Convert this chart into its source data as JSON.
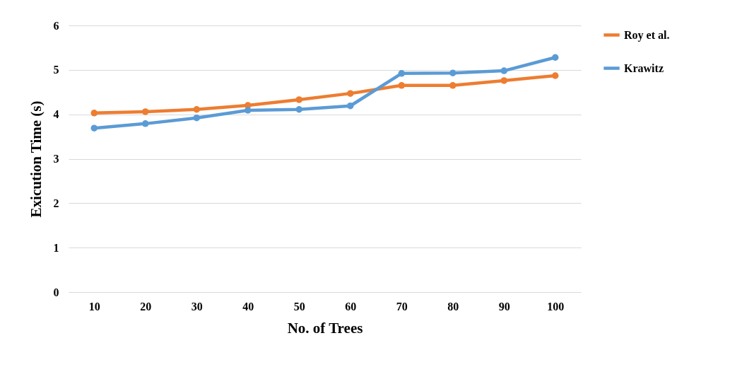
{
  "chart_data": {
    "type": "line",
    "xlabel": "No. of Trees",
    "ylabel": "Exicution Time (s)",
    "categories": [
      "10",
      "20",
      "30",
      "40",
      "50",
      "60",
      "70",
      "80",
      "90",
      "100"
    ],
    "series": [
      {
        "name": "Roy et al.",
        "color": "#ed7d31",
        "values": [
          4.03,
          4.06,
          4.11,
          4.2,
          4.33,
          4.47,
          4.65,
          4.65,
          4.76,
          4.87
        ]
      },
      {
        "name": "Krawitz",
        "color": "#5b9bd5",
        "values": [
          3.69,
          3.79,
          3.92,
          4.09,
          4.11,
          4.19,
          4.92,
          4.93,
          4.98,
          5.28
        ]
      }
    ],
    "ylim": [
      0,
      6
    ],
    "yticks": [
      0,
      1,
      2,
      3,
      4,
      5,
      6
    ],
    "grid": "y",
    "legend": "right",
    "marker": "circle",
    "line_style": "solid"
  }
}
